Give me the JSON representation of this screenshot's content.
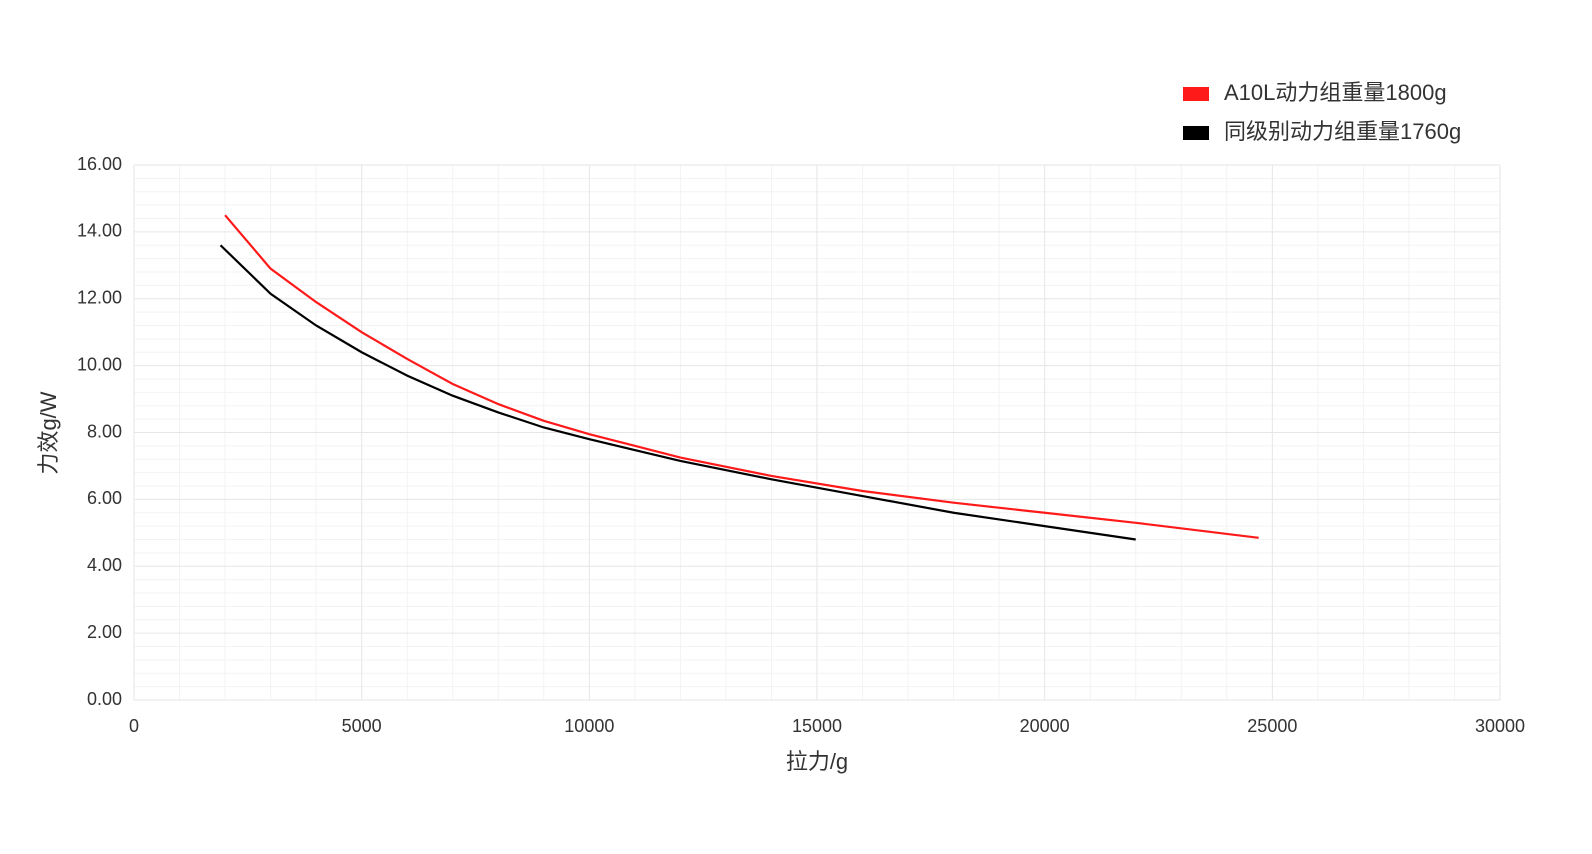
{
  "chart_data": {
    "type": "line",
    "x_label": "拉力/g",
    "y_label": "力效g/W",
    "xlim": [
      0,
      30000
    ],
    "xticks": [
      0,
      5000,
      10000,
      15000,
      20000,
      25000,
      30000
    ],
    "ylim": [
      0,
      16
    ],
    "yticks": [
      {
        "value": 0,
        "label": "0.00"
      },
      {
        "value": 2,
        "label": "2.00"
      },
      {
        "value": 4,
        "label": "4.00"
      },
      {
        "value": 6,
        "label": "6.00"
      },
      {
        "value": 8,
        "label": "8.00"
      },
      {
        "value": 10,
        "label": "10.00"
      },
      {
        "value": 12,
        "label": "12.00"
      },
      {
        "value": 14,
        "label": "14.00"
      },
      {
        "value": 16,
        "label": "16.00"
      }
    ],
    "grid": true,
    "minor_grid_divisions": 5,
    "legend": "top-right",
    "series": [
      {
        "name": "A10L动力组重量1800g",
        "color": "#ff1a1a",
        "x": [
          2000,
          3000,
          4000,
          5000,
          6000,
          7000,
          8000,
          9000,
          10000,
          12000,
          14000,
          16000,
          18000,
          20000,
          22000,
          24700
        ],
        "values": [
          14.5,
          12.9,
          11.9,
          11.0,
          10.2,
          9.45,
          8.85,
          8.35,
          7.95,
          7.25,
          6.7,
          6.25,
          5.9,
          5.6,
          5.3,
          4.85
        ]
      },
      {
        "name": "同级别动力组重量1760g",
        "color": "#000000",
        "x": [
          1900,
          3000,
          4000,
          5000,
          6000,
          7000,
          8000,
          9000,
          10000,
          12000,
          14000,
          16000,
          18000,
          20000,
          22000
        ],
        "values": [
          13.6,
          12.15,
          11.2,
          10.4,
          9.7,
          9.1,
          8.6,
          8.15,
          7.8,
          7.15,
          6.6,
          6.1,
          5.6,
          5.2,
          4.8
        ]
      }
    ]
  }
}
